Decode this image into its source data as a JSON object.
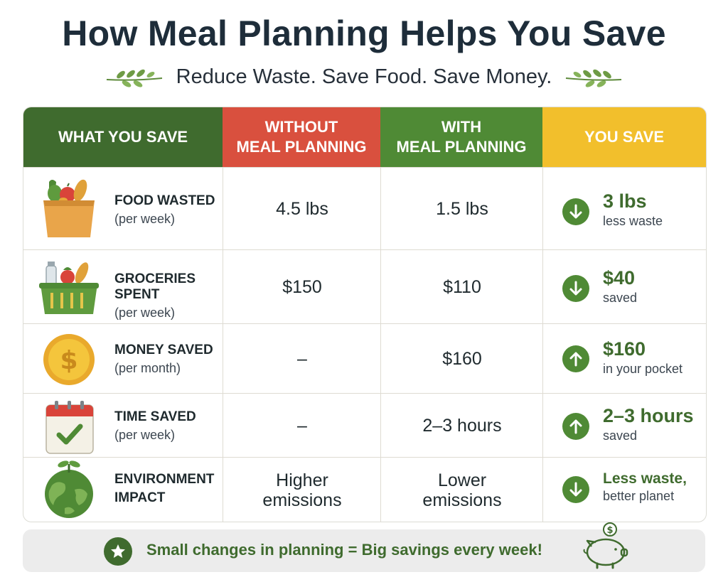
{
  "title": "How Meal Planning Helps You Save",
  "subtitle": "Reduce Waste. Save Food. Save Money.",
  "colors": {
    "dark_green": "#3f6b2e",
    "red": "#d9503e",
    "green": "#4f8a35",
    "yellow": "#f2bf2c"
  },
  "headers": {
    "col1": "WHAT YOU SAVE",
    "col2_line1": "WITHOUT",
    "col2_line2": "MEAL PLANNING",
    "col3_line1": "WITH",
    "col3_line2": "MEAL PLANNING",
    "col4": "YOU SAVE"
  },
  "rows": [
    {
      "icon": "grocery-bag-icon",
      "label": "FOOD WASTED",
      "sub": "(per week)",
      "without": "4.5 lbs",
      "with": "1.5 lbs",
      "arrow": "down",
      "save_main": "3 lbs",
      "save_sub": "less waste"
    },
    {
      "icon": "grocery-basket-icon",
      "label": "GROCERIES SPENT",
      "sub": "(per week)",
      "without": "$150",
      "with": "$110",
      "arrow": "down",
      "save_main": "$40",
      "save_sub": "saved"
    },
    {
      "icon": "gold-coin-icon",
      "label": "MONEY SAVED",
      "sub": "(per month)",
      "without": "–",
      "with": "$160",
      "arrow": "up",
      "save_main": "$160",
      "save_sub": "in your pocket"
    },
    {
      "icon": "calendar-check-icon",
      "label": "TIME SAVED",
      "sub": "(per week)",
      "without": "–",
      "with": "2–3 hours",
      "arrow": "up",
      "save_main": "2–3 hours",
      "save_sub": "saved"
    },
    {
      "icon": "globe-plant-icon",
      "label": "ENVIRONMENT",
      "label2": "IMPACT",
      "without_line1": "Higher",
      "without_line2": "emissions",
      "with_line1": "Lower",
      "with_line2": "emissions",
      "arrow": "down",
      "save_main": "Less waste,",
      "save_sub": "better planet"
    }
  ],
  "footer": {
    "text": "Small changes in planning = Big savings every week!"
  }
}
